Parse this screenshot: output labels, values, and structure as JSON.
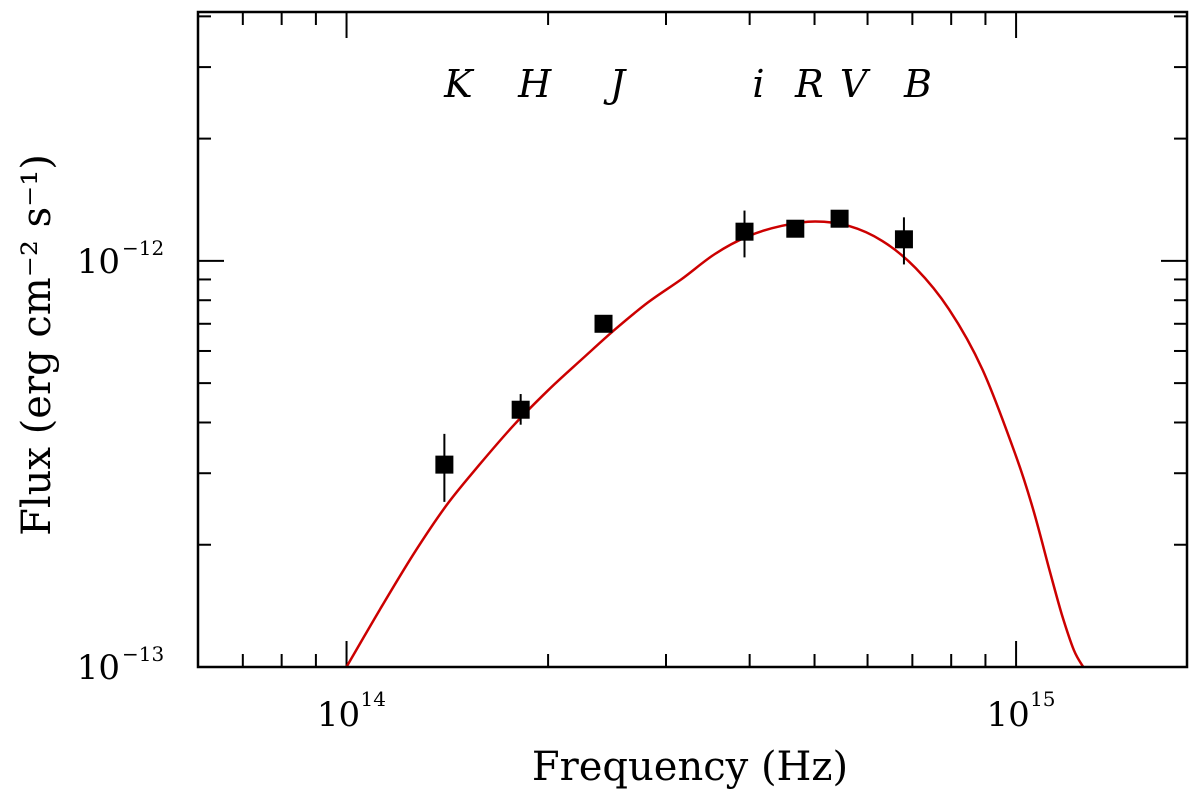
{
  "chart_data": {
    "type": "scatter",
    "title": "",
    "xlabel": "Frequency (Hz)",
    "ylabel": "Flux (erg cm⁻² s⁻¹)",
    "xscale": "log",
    "yscale": "log",
    "xlim": [
      60000000000000.0,
      1800000000000000.0
    ],
    "ylim": [
      1e-13,
      4.1e-12
    ],
    "x_major_ticks": [
      {
        "value": 100000000000000.0,
        "base": "10",
        "exp": "14"
      },
      {
        "value": 1000000000000000.0,
        "base": "10",
        "exp": "15"
      }
    ],
    "y_major_ticks": [
      {
        "value": 1e-12,
        "base": "10",
        "exp": "−12"
      },
      {
        "value": 1e-13,
        "base": "10",
        "exp": "−13"
      }
    ],
    "points": [
      {
        "band": "K",
        "x": 140000000000000.0,
        "y": 3.15e-13,
        "y_lo": 2.55e-13,
        "y_hi": 3.75e-13
      },
      {
        "band": "H",
        "x": 182000000000000.0,
        "y": 4.3e-13,
        "y_lo": 3.95e-13,
        "y_hi": 4.7e-13
      },
      {
        "band": "J",
        "x": 242000000000000.0,
        "y": 7e-13,
        "y_lo": 7e-13,
        "y_hi": 7e-13
      },
      {
        "band": "i",
        "x": 393000000000000.0,
        "y": 1.18e-12,
        "y_lo": 1.02e-12,
        "y_hi": 1.33e-12
      },
      {
        "band": "R",
        "x": 468000000000000.0,
        "y": 1.2e-12,
        "y_lo": 1.2e-12,
        "y_hi": 1.2e-12
      },
      {
        "band": "V",
        "x": 545000000000000.0,
        "y": 1.27e-12,
        "y_lo": 1.27e-12,
        "y_hi": 1.27e-12
      },
      {
        "band": "B",
        "x": 680000000000000.0,
        "y": 1.13e-12,
        "y_lo": 9.8e-13,
        "y_hi": 1.28e-12
      }
    ],
    "model_curve": {
      "name": "model",
      "color": "#cc0000",
      "x": [
        100000000000000.0,
        112000000000000.0,
        126000000000000.0,
        141000000000000.0,
        158000000000000.0,
        178000000000000.0,
        200000000000000.0,
        224000000000000.0,
        251000000000000.0,
        282000000000000.0,
        316000000000000.0,
        355000000000000.0,
        398000000000000.0,
        447000000000000.0,
        501000000000000.0,
        562000000000000.0,
        631000000000000.0,
        708000000000000.0,
        794000000000000.0,
        891000000000000.0,
        1000000000000000.0,
        1060000000000000.0,
        1120000000000000.0,
        1170000000000000.0,
        1220000000000000.0,
        1260000000000000.0
      ],
      "y": [
        1e-13,
        1.38e-13,
        1.9e-13,
        2.5e-13,
        3.15e-13,
        3.95e-13,
        4.8e-13,
        5.7e-13,
        6.75e-13,
        7.9e-13,
        9e-13,
        1.04e-12,
        1.15e-12,
        1.22e-12,
        1.25e-12,
        1.22e-12,
        1.12e-12,
        9.6e-13,
        7.6e-13,
        5.4e-13,
        3.3e-13,
        2.45e-13,
        1.75e-13,
        1.35e-13,
        1.1e-13,
        1e-13
      ]
    },
    "marker_color": "#000000",
    "grid": false,
    "legend": "none"
  }
}
